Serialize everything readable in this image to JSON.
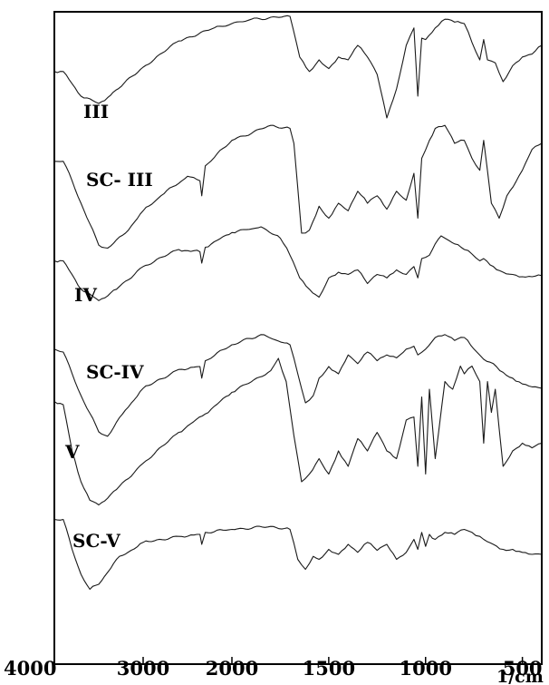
{
  "chart_data": {
    "type": "line",
    "title": "",
    "xlabel": "1/cm",
    "ylabel": "",
    "x_reversed": true,
    "xlim": [
      4000,
      400
    ],
    "x_ticks": [
      4000,
      3000,
      2000,
      1500,
      1000,
      500
    ],
    "x_tick_labels": [
      "4000",
      "3000",
      "2000",
      "1500",
      "1000",
      "500"
    ],
    "x_axis_scale": "expanded below 2000 (two-segment linear)",
    "y_axis": "stacked transmittance (arbitrary, no ticks)",
    "grid": false,
    "legend": "inline labels",
    "series": [
      {
        "name": "III",
        "label": "III",
        "points": [
          [
            4000,
            0.62
          ],
          [
            3900,
            0.62
          ],
          [
            3700,
            0.45
          ],
          [
            3500,
            0.4
          ],
          [
            3400,
            0.44
          ],
          [
            3000,
            0.65
          ],
          [
            2600,
            0.83
          ],
          [
            2200,
            0.92
          ],
          [
            1900,
            0.98
          ],
          [
            1700,
            1.0
          ],
          [
            1650,
            0.72
          ],
          [
            1600,
            0.62
          ],
          [
            1550,
            0.7
          ],
          [
            1500,
            0.64
          ],
          [
            1450,
            0.72
          ],
          [
            1400,
            0.7
          ],
          [
            1350,
            0.8
          ],
          [
            1300,
            0.72
          ],
          [
            1250,
            0.6
          ],
          [
            1200,
            0.3
          ],
          [
            1150,
            0.5
          ],
          [
            1100,
            0.8
          ],
          [
            1060,
            0.92
          ],
          [
            1040,
            0.45
          ],
          [
            1020,
            0.85
          ],
          [
            1000,
            0.84
          ],
          [
            950,
            0.92
          ],
          [
            900,
            0.98
          ],
          [
            850,
            0.96
          ],
          [
            800,
            0.95
          ],
          [
            760,
            0.82
          ],
          [
            720,
            0.7
          ],
          [
            700,
            0.84
          ],
          [
            680,
            0.7
          ],
          [
            640,
            0.68
          ],
          [
            600,
            0.55
          ],
          [
            550,
            0.66
          ],
          [
            500,
            0.72
          ],
          [
            450,
            0.74
          ],
          [
            400,
            0.8
          ]
        ]
      },
      {
        "name": "SC-III",
        "label": "SC- III",
        "points": [
          [
            4000,
            0.68
          ],
          [
            3900,
            0.68
          ],
          [
            3800,
            0.55
          ],
          [
            3700,
            0.4
          ],
          [
            3500,
            0.12
          ],
          [
            3400,
            0.1
          ],
          [
            3200,
            0.2
          ],
          [
            3000,
            0.35
          ],
          [
            2800,
            0.45
          ],
          [
            2500,
            0.58
          ],
          [
            2360,
            0.55
          ],
          [
            2340,
            0.45
          ],
          [
            2300,
            0.65
          ],
          [
            2000,
            0.82
          ],
          [
            1800,
            0.92
          ],
          [
            1700,
            0.9
          ],
          [
            1680,
            0.8
          ],
          [
            1640,
            0.2
          ],
          [
            1600,
            0.22
          ],
          [
            1550,
            0.38
          ],
          [
            1500,
            0.3
          ],
          [
            1450,
            0.4
          ],
          [
            1400,
            0.35
          ],
          [
            1350,
            0.48
          ],
          [
            1300,
            0.4
          ],
          [
            1250,
            0.45
          ],
          [
            1200,
            0.36
          ],
          [
            1150,
            0.48
          ],
          [
            1100,
            0.42
          ],
          [
            1060,
            0.6
          ],
          [
            1040,
            0.3
          ],
          [
            1020,
            0.7
          ],
          [
            980,
            0.82
          ],
          [
            950,
            0.9
          ],
          [
            900,
            0.92
          ],
          [
            850,
            0.8
          ],
          [
            800,
            0.82
          ],
          [
            760,
            0.7
          ],
          [
            720,
            0.62
          ],
          [
            700,
            0.82
          ],
          [
            660,
            0.4
          ],
          [
            620,
            0.3
          ],
          [
            580,
            0.45
          ],
          [
            500,
            0.62
          ],
          [
            450,
            0.76
          ],
          [
            400,
            0.8
          ]
        ]
      },
      {
        "name": "IV",
        "label": "IV",
        "points": [
          [
            4000,
            0.7
          ],
          [
            3900,
            0.7
          ],
          [
            3700,
            0.45
          ],
          [
            3500,
            0.35
          ],
          [
            3300,
            0.45
          ],
          [
            3000,
            0.65
          ],
          [
            2600,
            0.8
          ],
          [
            2360,
            0.78
          ],
          [
            2340,
            0.68
          ],
          [
            2300,
            0.82
          ],
          [
            2000,
            0.95
          ],
          [
            1850,
            1.0
          ],
          [
            1750,
            0.9
          ],
          [
            1700,
            0.75
          ],
          [
            1650,
            0.55
          ],
          [
            1600,
            0.45
          ],
          [
            1550,
            0.38
          ],
          [
            1500,
            0.55
          ],
          [
            1450,
            0.6
          ],
          [
            1400,
            0.58
          ],
          [
            1350,
            0.62
          ],
          [
            1300,
            0.5
          ],
          [
            1250,
            0.58
          ],
          [
            1200,
            0.55
          ],
          [
            1150,
            0.62
          ],
          [
            1100,
            0.58
          ],
          [
            1060,
            0.65
          ],
          [
            1040,
            0.55
          ],
          [
            1020,
            0.72
          ],
          [
            980,
            0.75
          ],
          [
            950,
            0.85
          ],
          [
            920,
            0.92
          ],
          [
            880,
            0.88
          ],
          [
            850,
            0.85
          ],
          [
            800,
            0.8
          ],
          [
            760,
            0.76
          ],
          [
            720,
            0.7
          ],
          [
            700,
            0.72
          ],
          [
            650,
            0.65
          ],
          [
            600,
            0.6
          ],
          [
            550,
            0.58
          ],
          [
            500,
            0.56
          ],
          [
            450,
            0.56
          ],
          [
            400,
            0.57
          ]
        ]
      },
      {
        "name": "SC-IV",
        "label": "SC-IV",
        "points": [
          [
            4000,
            0.72
          ],
          [
            3900,
            0.7
          ],
          [
            3700,
            0.4
          ],
          [
            3500,
            0.15
          ],
          [
            3400,
            0.12
          ],
          [
            3200,
            0.3
          ],
          [
            3000,
            0.45
          ],
          [
            2600,
            0.58
          ],
          [
            2360,
            0.6
          ],
          [
            2340,
            0.52
          ],
          [
            2300,
            0.64
          ],
          [
            2000,
            0.75
          ],
          [
            1850,
            0.82
          ],
          [
            1700,
            0.75
          ],
          [
            1660,
            0.55
          ],
          [
            1620,
            0.35
          ],
          [
            1580,
            0.4
          ],
          [
            1550,
            0.52
          ],
          [
            1500,
            0.6
          ],
          [
            1450,
            0.55
          ],
          [
            1400,
            0.68
          ],
          [
            1350,
            0.62
          ],
          [
            1300,
            0.7
          ],
          [
            1250,
            0.64
          ],
          [
            1200,
            0.68
          ],
          [
            1150,
            0.66
          ],
          [
            1100,
            0.72
          ],
          [
            1060,
            0.74
          ],
          [
            1040,
            0.68
          ],
          [
            1000,
            0.72
          ],
          [
            950,
            0.8
          ],
          [
            900,
            0.82
          ],
          [
            850,
            0.78
          ],
          [
            800,
            0.8
          ],
          [
            750,
            0.72
          ],
          [
            700,
            0.65
          ],
          [
            650,
            0.62
          ],
          [
            600,
            0.56
          ],
          [
            550,
            0.52
          ],
          [
            500,
            0.48
          ],
          [
            450,
            0.46
          ],
          [
            400,
            0.45
          ]
        ]
      },
      {
        "name": "V",
        "label": "V",
        "points": [
          [
            4000,
            0.72
          ],
          [
            3900,
            0.7
          ],
          [
            3800,
            0.4
          ],
          [
            3700,
            0.2
          ],
          [
            3600,
            0.08
          ],
          [
            3500,
            0.05
          ],
          [
            3300,
            0.15
          ],
          [
            3000,
            0.32
          ],
          [
            2600,
            0.52
          ],
          [
            2300,
            0.64
          ],
          [
            2000,
            0.78
          ],
          [
            1800,
            0.92
          ],
          [
            1760,
            1.0
          ],
          [
            1720,
            0.85
          ],
          [
            1680,
            0.5
          ],
          [
            1640,
            0.2
          ],
          [
            1600,
            0.25
          ],
          [
            1550,
            0.35
          ],
          [
            1500,
            0.25
          ],
          [
            1450,
            0.4
          ],
          [
            1400,
            0.3
          ],
          [
            1350,
            0.48
          ],
          [
            1300,
            0.4
          ],
          [
            1250,
            0.52
          ],
          [
            1200,
            0.4
          ],
          [
            1150,
            0.35
          ],
          [
            1100,
            0.6
          ],
          [
            1060,
            0.62
          ],
          [
            1040,
            0.3
          ],
          [
            1020,
            0.75
          ],
          [
            1000,
            0.25
          ],
          [
            980,
            0.8
          ],
          [
            950,
            0.35
          ],
          [
            900,
            0.85
          ],
          [
            860,
            0.8
          ],
          [
            820,
            0.95
          ],
          [
            800,
            0.9
          ],
          [
            760,
            0.95
          ],
          [
            720,
            0.85
          ],
          [
            700,
            0.45
          ],
          [
            680,
            0.85
          ],
          [
            660,
            0.65
          ],
          [
            640,
            0.8
          ],
          [
            600,
            0.3
          ],
          [
            550,
            0.4
          ],
          [
            500,
            0.45
          ],
          [
            450,
            0.42
          ],
          [
            400,
            0.45
          ]
        ]
      },
      {
        "name": "SC-V",
        "label": "SC-V",
        "points": [
          [
            4000,
            0.75
          ],
          [
            3900,
            0.75
          ],
          [
            3800,
            0.45
          ],
          [
            3700,
            0.2
          ],
          [
            3600,
            0.05
          ],
          [
            3500,
            0.1
          ],
          [
            3300,
            0.35
          ],
          [
            3000,
            0.52
          ],
          [
            2600,
            0.58
          ],
          [
            2360,
            0.6
          ],
          [
            2340,
            0.5
          ],
          [
            2300,
            0.62
          ],
          [
            2000,
            0.65
          ],
          [
            1800,
            0.68
          ],
          [
            1700,
            0.65
          ],
          [
            1660,
            0.35
          ],
          [
            1620,
            0.25
          ],
          [
            1580,
            0.38
          ],
          [
            1550,
            0.35
          ],
          [
            1500,
            0.45
          ],
          [
            1450,
            0.4
          ],
          [
            1400,
            0.5
          ],
          [
            1350,
            0.42
          ],
          [
            1300,
            0.52
          ],
          [
            1250,
            0.44
          ],
          [
            1200,
            0.5
          ],
          [
            1150,
            0.35
          ],
          [
            1100,
            0.42
          ],
          [
            1060,
            0.55
          ],
          [
            1040,
            0.45
          ],
          [
            1020,
            0.62
          ],
          [
            1000,
            0.48
          ],
          [
            980,
            0.6
          ],
          [
            950,
            0.55
          ],
          [
            900,
            0.62
          ],
          [
            850,
            0.6
          ],
          [
            800,
            0.65
          ],
          [
            760,
            0.62
          ],
          [
            720,
            0.58
          ],
          [
            700,
            0.55
          ],
          [
            650,
            0.5
          ],
          [
            600,
            0.45
          ],
          [
            550,
            0.45
          ],
          [
            500,
            0.42
          ],
          [
            450,
            0.4
          ],
          [
            400,
            0.4
          ]
        ]
      }
    ]
  }
}
